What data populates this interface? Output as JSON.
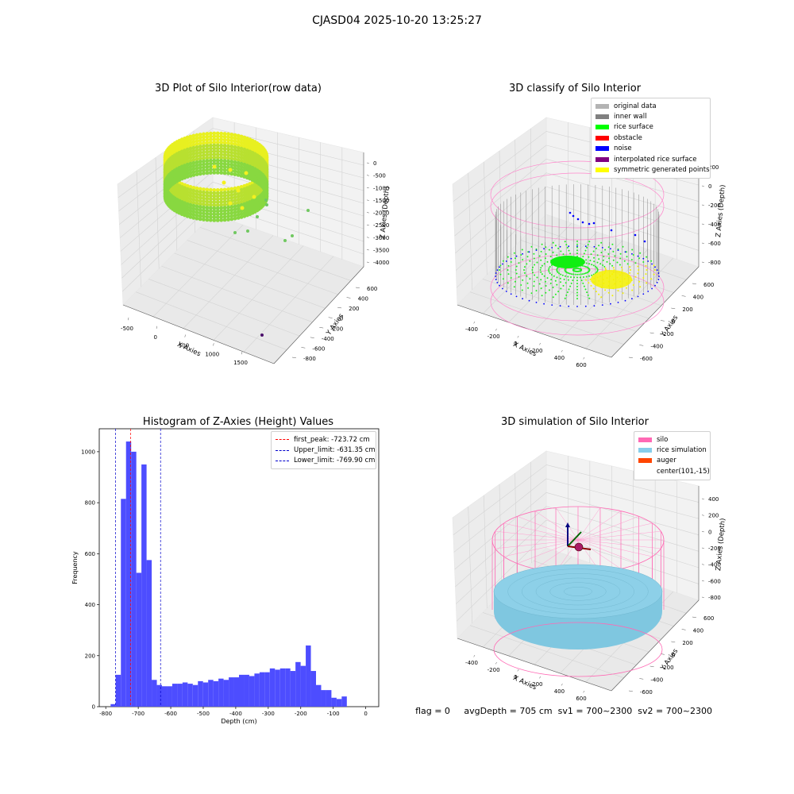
{
  "suptitle": "CJASD04 2025-10-20 13:25:27",
  "panels": {
    "raw": {
      "title": "3D Plot of Silo Interior(row data)",
      "xlabel": "X Axies",
      "ylabel": "Y Axies",
      "zlabel": "Z Axies (Depth)",
      "xticks": [
        "-500",
        "0",
        "500",
        "1000",
        "1500"
      ],
      "yticks": [
        "600",
        "400",
        "200",
        "0",
        "-200",
        "-400",
        "-600",
        "-800"
      ],
      "zticks": [
        "0",
        "-500",
        "-1000",
        "-1500",
        "-2000",
        "-2500",
        "-3000",
        "-3500",
        "-4000"
      ]
    },
    "classify": {
      "title": "3D classify of Silo Interior",
      "xlabel": "X Axies",
      "ylabel": "Y Axies",
      "zlabel": "Z Axies (Depth)",
      "xticks": [
        "-400",
        "-200",
        "0",
        "200",
        "400",
        "600"
      ],
      "yticks": [
        "600",
        "400",
        "200",
        "0",
        "-200",
        "-400",
        "-600"
      ],
      "zticks": [
        "200",
        "0",
        "-200",
        "-400",
        "-600",
        "-800"
      ],
      "zticks_hidden": [
        "400"
      ],
      "legend": [
        {
          "label": "original data",
          "color": "#b3b3b3"
        },
        {
          "label": "inner wall",
          "color": "#808080"
        },
        {
          "label": "rice surface",
          "color": "#00ff00"
        },
        {
          "label": "obstacle",
          "color": "#ff0000"
        },
        {
          "label": "noise",
          "color": "#0000ff"
        },
        {
          "label": "interpolated rice surface",
          "color": "#800080"
        },
        {
          "label": "symmetric generated points",
          "color": "#ffff00"
        }
      ]
    },
    "histogram": {
      "title": "Histogram of Z-Axies (Height) Values",
      "legend": [
        {
          "label": "first_peak: -723.72 cm",
          "color": "#ff0000"
        },
        {
          "label": "Upper_limit: -631.35 cm",
          "color": "#0000cc"
        },
        {
          "label": "Lower_limit: -769.90 cm",
          "color": "#0000cc"
        }
      ]
    },
    "simulation": {
      "title": "3D simulation of Silo Interior",
      "xlabel": "X Axies",
      "ylabel": "Y Axies",
      "zlabel": "Z Axies (Depth)",
      "xticks": [
        "-400",
        "-200",
        "0",
        "200",
        "400",
        "600"
      ],
      "yticks": [
        "600",
        "400",
        "200",
        "0",
        "-200",
        "-400",
        "-600"
      ],
      "zticks": [
        "400",
        "200",
        "0",
        "-200",
        "-400",
        "-600",
        "-800"
      ],
      "legend": [
        {
          "label": "silo",
          "color": "#ff69b4"
        },
        {
          "label": "rice simulation",
          "color": "#87ceeb"
        },
        {
          "label": "auger",
          "color": "#ff4500"
        },
        {
          "label": "center(101,-15)",
          "color": ""
        }
      ]
    }
  },
  "status": {
    "flag": "flag = 0",
    "avg": "avgDepth = 705 cm",
    "sv1": "sv1 = 700~2300",
    "sv2": "sv2 = 700~2300"
  },
  "chart_data": {
    "type": "bar",
    "title": "Histogram of Z-Axies (Height) Values",
    "xlabel": "Depth (cm)",
    "ylabel": "Frequency",
    "xlim": [
      -820,
      40
    ],
    "ylim": [
      0,
      1090
    ],
    "xticks": [
      -800,
      -700,
      -600,
      -500,
      -400,
      -300,
      -200,
      -100,
      0
    ],
    "yticks": [
      0,
      200,
      400,
      600,
      800,
      1000
    ],
    "color": "#4d4dff",
    "bin_start": -785,
    "bin_width": 15.8,
    "values": [
      10,
      125,
      815,
      1040,
      1000,
      525,
      950,
      575,
      105,
      85,
      80,
      80,
      90,
      90,
      95,
      90,
      85,
      100,
      95,
      105,
      100,
      110,
      105,
      115,
      115,
      125,
      125,
      120,
      130,
      135,
      135,
      150,
      145,
      150,
      150,
      140,
      175,
      160,
      240,
      140,
      85,
      65,
      65,
      35,
      30,
      40
    ],
    "vlines": [
      {
        "label": "first_peak",
        "x": -723.72,
        "color": "#ff0000"
      },
      {
        "label": "Upper_limit",
        "x": -631.35,
        "color": "#0000cc"
      },
      {
        "label": "Lower_limit",
        "x": -769.9,
        "color": "#0000cc"
      }
    ]
  }
}
